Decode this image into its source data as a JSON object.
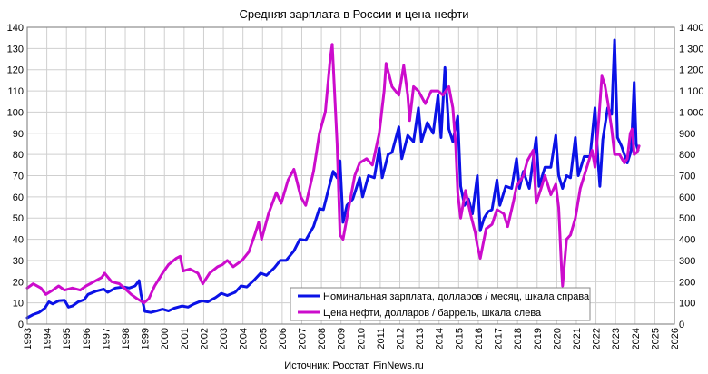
{
  "chart_data": {
    "type": "line",
    "title": "Средняя зарплата в России и цена нефти",
    "source": "Источник: Росстат, FinNews.ru",
    "grid": true,
    "legend_position": "bottom-right",
    "x_ticks": [
      "1993",
      "1994",
      "1995",
      "1996",
      "1997",
      "1998",
      "1999",
      "2000",
      "2001",
      "2002",
      "2003",
      "2004",
      "2005",
      "2006",
      "2007",
      "2008",
      "2009",
      "2010",
      "2011",
      "2012",
      "2013",
      "2014",
      "2015",
      "2016",
      "2017",
      "2018",
      "2019",
      "2020",
      "2021",
      "2022",
      "2023",
      "2024",
      "2025",
      "2026"
    ],
    "xlim": [
      1993,
      2026
    ],
    "y_left": {
      "ylim": [
        0,
        140
      ],
      "ticks": [
        "0",
        "10",
        "20",
        "30",
        "40",
        "50",
        "60",
        "70",
        "80",
        "90",
        "100",
        "110",
        "120",
        "130",
        "140"
      ]
    },
    "y_right": {
      "ylim": [
        0,
        1400
      ],
      "ticks": [
        "0",
        "100",
        "200",
        "300",
        "400",
        "500",
        "600",
        "700",
        "800",
        "900",
        "1 000",
        "1 100",
        "1 200",
        "1 300",
        "1 400"
      ]
    },
    "series": [
      {
        "name": "Номинальная зарплата, долларов / месяц, шкала справа",
        "color": "#0b12e6",
        "axis": "right",
        "points": [
          [
            1993.0,
            30
          ],
          [
            1993.3,
            45
          ],
          [
            1993.6,
            55
          ],
          [
            1993.9,
            75
          ],
          [
            1994.1,
            105
          ],
          [
            1994.3,
            95
          ],
          [
            1994.6,
            110
          ],
          [
            1994.9,
            112
          ],
          [
            1995.1,
            80
          ],
          [
            1995.3,
            85
          ],
          [
            1995.6,
            105
          ],
          [
            1995.9,
            115
          ],
          [
            1996.1,
            140
          ],
          [
            1996.5,
            155
          ],
          [
            1996.9,
            165
          ],
          [
            1997.1,
            150
          ],
          [
            1997.5,
            170
          ],
          [
            1997.9,
            175
          ],
          [
            1998.2,
            170
          ],
          [
            1998.5,
            180
          ],
          [
            1998.7,
            205
          ],
          [
            1998.8,
            140
          ],
          [
            1999.0,
            60
          ],
          [
            1999.3,
            55
          ],
          [
            1999.6,
            62
          ],
          [
            1999.9,
            70
          ],
          [
            2000.2,
            62
          ],
          [
            2000.5,
            75
          ],
          [
            2000.9,
            85
          ],
          [
            2001.2,
            80
          ],
          [
            2001.5,
            95
          ],
          [
            2001.9,
            110
          ],
          [
            2002.2,
            105
          ],
          [
            2002.6,
            125
          ],
          [
            2002.9,
            145
          ],
          [
            2003.2,
            135
          ],
          [
            2003.6,
            150
          ],
          [
            2003.9,
            180
          ],
          [
            2004.2,
            175
          ],
          [
            2004.6,
            210
          ],
          [
            2004.9,
            240
          ],
          [
            2005.2,
            230
          ],
          [
            2005.6,
            265
          ],
          [
            2005.9,
            300
          ],
          [
            2006.2,
            300
          ],
          [
            2006.6,
            345
          ],
          [
            2006.9,
            400
          ],
          [
            2007.2,
            395
          ],
          [
            2007.6,
            460
          ],
          [
            2007.9,
            545
          ],
          [
            2008.1,
            540
          ],
          [
            2008.4,
            650
          ],
          [
            2008.6,
            720
          ],
          [
            2008.8,
            690
          ],
          [
            2008.95,
            770
          ],
          [
            2009.1,
            480
          ],
          [
            2009.3,
            560
          ],
          [
            2009.6,
            590
          ],
          [
            2009.95,
            690
          ],
          [
            2010.1,
            600
          ],
          [
            2010.4,
            700
          ],
          [
            2010.7,
            690
          ],
          [
            2010.95,
            830
          ],
          [
            2011.1,
            690
          ],
          [
            2011.4,
            800
          ],
          [
            2011.6,
            810
          ],
          [
            2011.95,
            930
          ],
          [
            2012.1,
            780
          ],
          [
            2012.4,
            890
          ],
          [
            2012.7,
            860
          ],
          [
            2012.95,
            1020
          ],
          [
            2013.1,
            860
          ],
          [
            2013.4,
            950
          ],
          [
            2013.7,
            900
          ],
          [
            2013.95,
            1080
          ],
          [
            2014.1,
            880
          ],
          [
            2014.3,
            1210
          ],
          [
            2014.5,
            920
          ],
          [
            2014.7,
            860
          ],
          [
            2014.95,
            980
          ],
          [
            2015.1,
            650
          ],
          [
            2015.3,
            560
          ],
          [
            2015.5,
            590
          ],
          [
            2015.7,
            520
          ],
          [
            2015.95,
            700
          ],
          [
            2016.1,
            440
          ],
          [
            2016.3,
            500
          ],
          [
            2016.5,
            530
          ],
          [
            2016.7,
            540
          ],
          [
            2016.95,
            680
          ],
          [
            2017.1,
            560
          ],
          [
            2017.4,
            650
          ],
          [
            2017.7,
            640
          ],
          [
            2017.95,
            780
          ],
          [
            2018.1,
            640
          ],
          [
            2018.3,
            720
          ],
          [
            2018.6,
            640
          ],
          [
            2018.95,
            880
          ],
          [
            2019.1,
            650
          ],
          [
            2019.4,
            740
          ],
          [
            2019.7,
            740
          ],
          [
            2019.95,
            890
          ],
          [
            2020.1,
            700
          ],
          [
            2020.3,
            640
          ],
          [
            2020.5,
            700
          ],
          [
            2020.7,
            690
          ],
          [
            2020.95,
            880
          ],
          [
            2021.1,
            700
          ],
          [
            2021.4,
            790
          ],
          [
            2021.7,
            790
          ],
          [
            2021.95,
            1020
          ],
          [
            2022.1,
            780
          ],
          [
            2022.2,
            650
          ],
          [
            2022.35,
            870
          ],
          [
            2022.6,
            1020
          ],
          [
            2022.8,
            990
          ],
          [
            2022.95,
            1340
          ],
          [
            2023.1,
            880
          ],
          [
            2023.3,
            840
          ],
          [
            2023.6,
            760
          ],
          [
            2023.8,
            820
          ],
          [
            2023.95,
            1140
          ],
          [
            2024.05,
            850
          ],
          [
            2024.15,
            820
          ]
        ]
      },
      {
        "name": "Цена нефти, долларов / баррель, шкала слева",
        "color": "#cc0ccc",
        "axis": "left",
        "points": [
          [
            1993.0,
            17
          ],
          [
            1993.3,
            19
          ],
          [
            1993.7,
            17
          ],
          [
            1993.95,
            14
          ],
          [
            1994.3,
            16
          ],
          [
            1994.6,
            18
          ],
          [
            1994.9,
            16
          ],
          [
            1995.3,
            17
          ],
          [
            1995.7,
            16
          ],
          [
            1996.0,
            18
          ],
          [
            1996.4,
            20
          ],
          [
            1996.8,
            22
          ],
          [
            1996.95,
            24
          ],
          [
            1997.3,
            20
          ],
          [
            1997.7,
            19
          ],
          [
            1997.95,
            17
          ],
          [
            1998.3,
            14
          ],
          [
            1998.6,
            12
          ],
          [
            1998.95,
            10
          ],
          [
            1999.2,
            12
          ],
          [
            1999.5,
            18
          ],
          [
            1999.9,
            24
          ],
          [
            2000.2,
            28
          ],
          [
            2000.6,
            31
          ],
          [
            2000.8,
            32
          ],
          [
            2000.95,
            25
          ],
          [
            2001.3,
            26
          ],
          [
            2001.7,
            24
          ],
          [
            2001.95,
            19
          ],
          [
            2002.3,
            24
          ],
          [
            2002.7,
            27
          ],
          [
            2002.95,
            28
          ],
          [
            2003.2,
            30
          ],
          [
            2003.5,
            27
          ],
          [
            2003.95,
            30
          ],
          [
            2004.3,
            34
          ],
          [
            2004.6,
            42
          ],
          [
            2004.8,
            48
          ],
          [
            2004.95,
            40
          ],
          [
            2005.3,
            52
          ],
          [
            2005.7,
            62
          ],
          [
            2005.95,
            57
          ],
          [
            2006.3,
            68
          ],
          [
            2006.6,
            73
          ],
          [
            2006.95,
            60
          ],
          [
            2007.2,
            56
          ],
          [
            2007.6,
            72
          ],
          [
            2007.9,
            90
          ],
          [
            2008.2,
            100
          ],
          [
            2008.45,
            125
          ],
          [
            2008.55,
            132
          ],
          [
            2008.8,
            85
          ],
          [
            2008.95,
            42
          ],
          [
            2009.1,
            40
          ],
          [
            2009.4,
            55
          ],
          [
            2009.7,
            70
          ],
          [
            2009.95,
            76
          ],
          [
            2010.3,
            78
          ],
          [
            2010.6,
            75
          ],
          [
            2010.95,
            90
          ],
          [
            2011.2,
            110
          ],
          [
            2011.3,
            123
          ],
          [
            2011.6,
            112
          ],
          [
            2011.95,
            108
          ],
          [
            2012.2,
            122
          ],
          [
            2012.4,
            108
          ],
          [
            2012.5,
            96
          ],
          [
            2012.7,
            112
          ],
          [
            2012.95,
            110
          ],
          [
            2013.3,
            104
          ],
          [
            2013.6,
            110
          ],
          [
            2013.95,
            110
          ],
          [
            2014.2,
            108
          ],
          [
            2014.5,
            112
          ],
          [
            2014.7,
            102
          ],
          [
            2014.85,
            84
          ],
          [
            2014.95,
            62
          ],
          [
            2015.1,
            50
          ],
          [
            2015.35,
            63
          ],
          [
            2015.6,
            52
          ],
          [
            2015.85,
            43
          ],
          [
            2015.95,
            37
          ],
          [
            2016.1,
            31
          ],
          [
            2016.4,
            45
          ],
          [
            2016.7,
            47
          ],
          [
            2016.95,
            54
          ],
          [
            2017.3,
            52
          ],
          [
            2017.5,
            46
          ],
          [
            2017.8,
            58
          ],
          [
            2017.95,
            65
          ],
          [
            2018.3,
            70
          ],
          [
            2018.5,
            77
          ],
          [
            2018.8,
            82
          ],
          [
            2018.95,
            57
          ],
          [
            2019.2,
            64
          ],
          [
            2019.4,
            70
          ],
          [
            2019.7,
            61
          ],
          [
            2019.95,
            66
          ],
          [
            2020.1,
            55
          ],
          [
            2020.25,
            25
          ],
          [
            2020.3,
            18
          ],
          [
            2020.5,
            40
          ],
          [
            2020.7,
            42
          ],
          [
            2020.95,
            50
          ],
          [
            2021.2,
            64
          ],
          [
            2021.5,
            73
          ],
          [
            2021.8,
            82
          ],
          [
            2021.95,
            74
          ],
          [
            2022.15,
            97
          ],
          [
            2022.3,
            117
          ],
          [
            2022.45,
            113
          ],
          [
            2022.6,
            105
          ],
          [
            2022.8,
            92
          ],
          [
            2022.95,
            80
          ],
          [
            2023.2,
            80
          ],
          [
            2023.45,
            76
          ],
          [
            2023.6,
            78
          ],
          [
            2023.75,
            90
          ],
          [
            2023.85,
            92
          ],
          [
            2023.95,
            80
          ],
          [
            2024.1,
            81
          ],
          [
            2024.2,
            84
          ]
        ]
      }
    ]
  }
}
